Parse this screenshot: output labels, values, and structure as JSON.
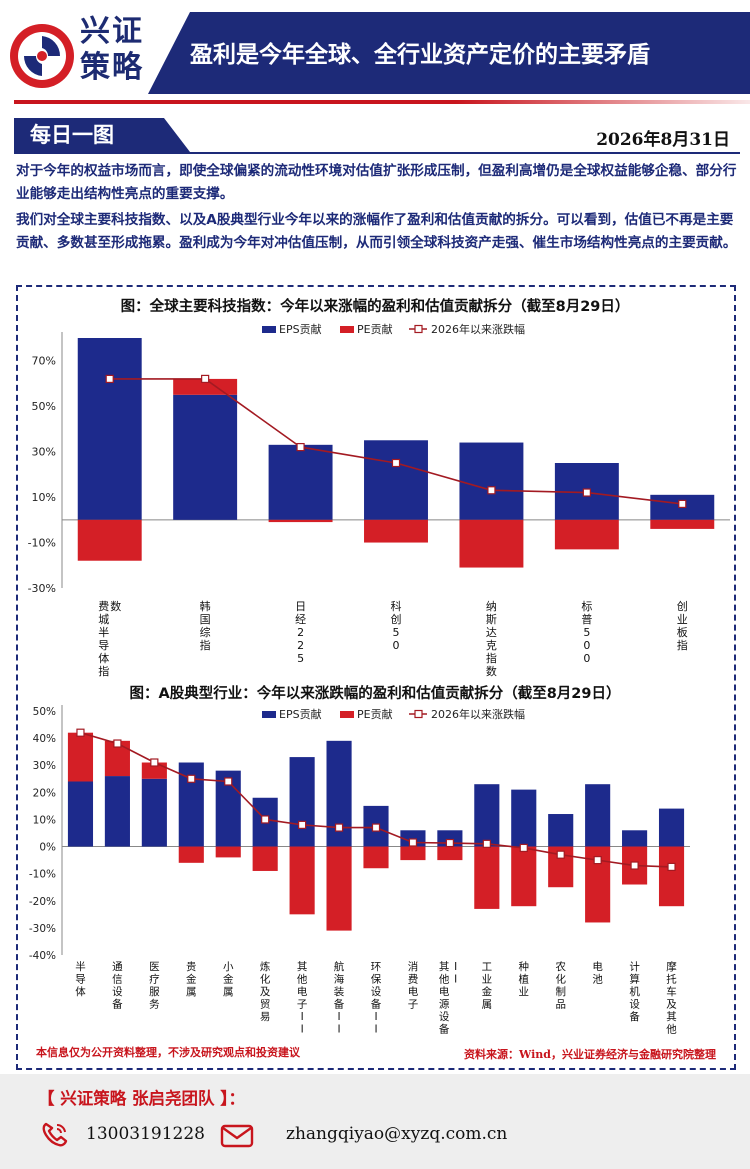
{
  "brand": {
    "line1": "兴证",
    "line2": "策略"
  },
  "header": {
    "title": "盈利是今年全球、全行业资产定价的主要矛盾"
  },
  "section": {
    "label": "每日一图",
    "date": "2026年8月31日"
  },
  "paragraphs": [
    "对于今年的权益市场而言，即使全球偏紧的流动性环境对估值扩张形成压制，但盈利高增仍是全球权益能够企稳、部分行业能够走出结构性亮点的重要支撑。",
    "我们对全球主要科技指数、以及A股典型行业今年以来的涨幅作了盈利和估值贡献的拆分。可以看到，估值已不再是主要贡献、多数甚至形成拖累。盈利成为今年对冲估值压制，从而引领全球科技资产走强、催生市场结构性亮点的主要贡献。"
  ],
  "chart_data": [
    {
      "type": "bar",
      "title": "图：全球主要科技指数：今年以来涨幅的盈利和估值贡献拆分（截至8月29日）",
      "categories": [
        "费城半导体指数",
        "韩国综指",
        "日经225",
        "科创50",
        "纳斯达克指数",
        "标普500",
        "创业板指"
      ],
      "series": [
        {
          "name": "EPS贡献",
          "kind": "bar",
          "color": "#1d2a8c",
          "values": [
            80,
            55,
            33,
            35,
            34,
            25,
            11
          ]
        },
        {
          "name": "PE贡献",
          "kind": "bar",
          "color": "#d41f26",
          "values": [
            -18,
            7,
            -1,
            -10,
            -21,
            -13,
            -4
          ]
        },
        {
          "name": "2026年以来涨跌幅",
          "kind": "line",
          "color": "#a31a22",
          "values": [
            62,
            62,
            32,
            25,
            13,
            12,
            7
          ]
        }
      ],
      "ylim": [
        -30,
        80
      ],
      "yticks": [
        "-30%",
        "-10%",
        "10%",
        "30%",
        "50%",
        "70%"
      ],
      "legend": "top-right"
    },
    {
      "type": "bar",
      "title": "图：A股典型行业：今年以来涨跌幅的盈利和估值贡献拆分（截至8月29日）",
      "categories": [
        "半导体",
        "通信设备",
        "医疗服务",
        "贵金属",
        "小金属",
        "炼化及贸易",
        "其他电子II",
        "航海装备II",
        "环保设备II",
        "消费电子",
        "其他电源设备II",
        "工业金属",
        "种植业",
        "农化制品",
        "电池",
        "计算机设备",
        "摩托车及其他"
      ],
      "series": [
        {
          "name": "EPS贡献",
          "kind": "bar",
          "color": "#1d2a8c",
          "values": [
            24,
            26,
            25,
            31,
            28,
            18,
            33,
            39,
            15,
            6,
            6,
            23,
            21,
            12,
            23,
            6,
            14
          ]
        },
        {
          "name": "PE贡献",
          "kind": "bar",
          "color": "#d41f26",
          "values": [
            18,
            13,
            6,
            -6,
            -4,
            -9,
            -25,
            -31,
            -8,
            -5,
            -5,
            -23,
            -22,
            -15,
            -28,
            -14,
            -22
          ]
        },
        {
          "name": "2026年以来涨跌幅",
          "kind": "line",
          "color": "#a31a22",
          "values": [
            42,
            38,
            31,
            25,
            24,
            10,
            8,
            7,
            7,
            1.5,
            1.3,
            1,
            -0.5,
            -3,
            -5,
            -7,
            -7.5
          ]
        }
      ],
      "ylim": [
        -40,
        50
      ],
      "yticks": [
        "-40%",
        "-30%",
        "-20%",
        "-10%",
        "0%",
        "10%",
        "20%",
        "30%",
        "40%",
        "50%"
      ],
      "legend": "top-right"
    }
  ],
  "disclaimer": "本信息仅为公开资料整理，不涉及研究观点和投资建议",
  "source": "资料来源：Wind，兴业证券经济与金融研究院整理",
  "footer": {
    "team": "【 兴证策略 张启尧团队 】：",
    "phone_icon": "phone-icon",
    "phone": "13003191228",
    "mail_icon": "mail-icon",
    "email": "zhangqiyao@xyzq.com.cn"
  }
}
